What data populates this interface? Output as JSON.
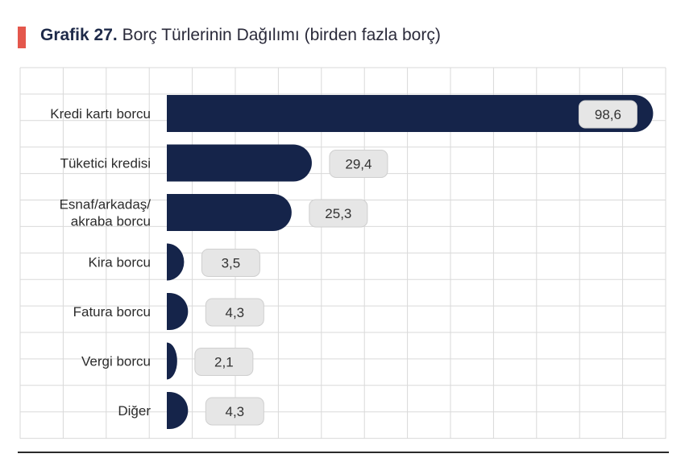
{
  "title": {
    "prefix": "Grafik 27.",
    "text": "Borç Türlerinin Dağılımı (birden fazla borç)"
  },
  "colors": {
    "accent": "#e4574c",
    "bar": "#15244a",
    "label_box": "#e6e6e6",
    "grid": "#d9d9d9"
  },
  "chart_data": {
    "type": "bar",
    "orientation": "horizontal",
    "categories": [
      [
        "Kredi kartı borcu"
      ],
      [
        "Tüketici kredisi"
      ],
      [
        "Esnaf/arkadaş/",
        "akraba borcu"
      ],
      [
        "Kira borcu"
      ],
      [
        "Fatura borcu"
      ],
      [
        "Vergi borcu"
      ],
      [
        "Diğer"
      ]
    ],
    "values": [
      98.6,
      29.4,
      25.3,
      3.5,
      4.3,
      2.1,
      4.3
    ],
    "value_labels": [
      "98,6",
      "29,4",
      "25,3",
      "3,5",
      "4,3",
      "2,1",
      "4,3"
    ],
    "xlim": [
      0,
      100
    ],
    "grid": true,
    "legend": false
  }
}
